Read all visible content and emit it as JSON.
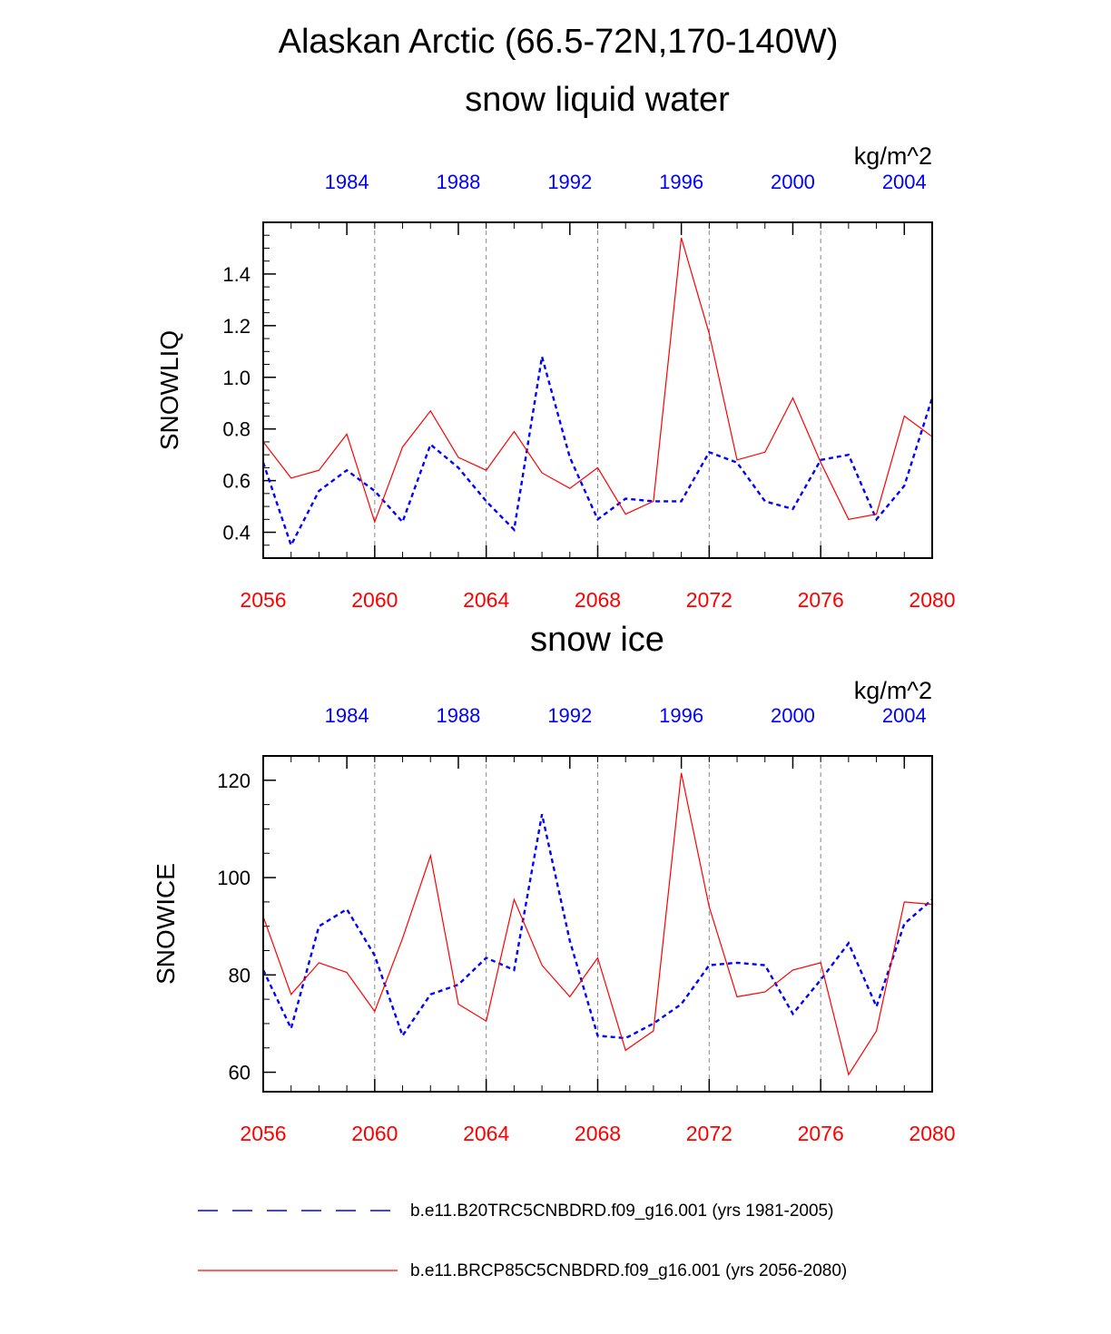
{
  "page_title": "Alaskan Arctic (66.5-72N,170-140W)",
  "colors": {
    "hist": "#0000ff",
    "future": "#ff0000",
    "axis": "#000000",
    "grid": "#888888"
  },
  "legend": {
    "hist_label": "b.e11.B20TRC5CNBDRD.f09_g16.001 (yrs 1981-2005)",
    "future_label": "b.e11.BRCP85C5CNBDRD.f09_g16.001 (yrs 2056-2080)"
  },
  "chart_data": [
    {
      "type": "line",
      "title": "snow liquid water",
      "units": "kg/m^2",
      "ylabel": "SNOWLIQ",
      "ylim": [
        0.3,
        1.6
      ],
      "yticks": [
        0.4,
        0.6,
        0.8,
        1.0,
        1.2,
        1.4
      ],
      "ytick_labels": [
        "0.4",
        "0.6",
        "0.8",
        "1.0",
        "1.2",
        "1.4"
      ],
      "bottom_xlim": [
        2056,
        2080
      ],
      "bottom_ticks": [
        2056,
        2060,
        2064,
        2068,
        2072,
        2076,
        2080
      ],
      "bottom_tick_labels": [
        "2056",
        "2060",
        "2064",
        "2068",
        "2072",
        "2076",
        "2080"
      ],
      "top_xlim": [
        1981,
        2005
      ],
      "top_ticks": [
        1984,
        1988,
        1992,
        1996,
        2000,
        2004
      ],
      "top_tick_labels": [
        "1984",
        "1988",
        "1992",
        "1996",
        "2000",
        "2004"
      ],
      "series": [
        {
          "name": "b.e11.B20TRC5CNBDRD.f09_g16.001 (yrs 1981-2005)",
          "axis": "top",
          "style": "dashed",
          "x": [
            1981,
            1982,
            1983,
            1984,
            1985,
            1986,
            1987,
            1988,
            1989,
            1990,
            1991,
            1992,
            1993,
            1994,
            1995,
            1996,
            1997,
            1998,
            1999,
            2000,
            2001,
            2002,
            2003,
            2004,
            2005
          ],
          "values": [
            0.67,
            0.35,
            0.56,
            0.64,
            0.56,
            0.44,
            0.74,
            0.65,
            0.52,
            0.41,
            1.08,
            0.69,
            0.45,
            0.53,
            0.52,
            0.52,
            0.71,
            0.67,
            0.52,
            0.49,
            0.68,
            0.7,
            0.45,
            0.58,
            0.92
          ]
        },
        {
          "name": "b.e11.BRCP85C5CNBDRD.f09_g16.001 (yrs 2056-2080)",
          "axis": "bottom",
          "style": "solid",
          "x": [
            2056,
            2057,
            2058,
            2059,
            2060,
            2061,
            2062,
            2063,
            2064,
            2065,
            2066,
            2067,
            2068,
            2069,
            2070,
            2071,
            2072,
            2073,
            2074,
            2075,
            2076,
            2077,
            2078,
            2079,
            2080
          ],
          "values": [
            0.75,
            0.61,
            0.64,
            0.78,
            0.44,
            0.73,
            0.87,
            0.69,
            0.64,
            0.79,
            0.63,
            0.57,
            0.65,
            0.47,
            0.52,
            1.54,
            1.17,
            0.68,
            0.71,
            0.92,
            0.67,
            0.45,
            0.47,
            0.85,
            0.77
          ]
        }
      ]
    },
    {
      "type": "line",
      "title": "snow ice",
      "units": "kg/m^2",
      "ylabel": "SNOWICE",
      "ylim": [
        56,
        125
      ],
      "yticks": [
        60,
        80,
        100,
        120
      ],
      "ytick_labels": [
        "60",
        "80",
        "100",
        "120"
      ],
      "bottom_xlim": [
        2056,
        2080
      ],
      "bottom_ticks": [
        2056,
        2060,
        2064,
        2068,
        2072,
        2076,
        2080
      ],
      "bottom_tick_labels": [
        "2056",
        "2060",
        "2064",
        "2068",
        "2072",
        "2076",
        "2080"
      ],
      "top_xlim": [
        1981,
        2005
      ],
      "top_ticks": [
        1984,
        1988,
        1992,
        1996,
        2000,
        2004
      ],
      "top_tick_labels": [
        "1984",
        "1988",
        "1992",
        "1996",
        "2000",
        "2004"
      ],
      "series": [
        {
          "name": "b.e11.B20TRC5CNBDRD.f09_g16.001 (yrs 1981-2005)",
          "axis": "top",
          "style": "dashed",
          "x": [
            1981,
            1982,
            1983,
            1984,
            1985,
            1986,
            1987,
            1988,
            1989,
            1990,
            1991,
            1992,
            1993,
            1994,
            1995,
            1996,
            1997,
            1998,
            1999,
            2000,
            2001,
            2002,
            2003,
            2004,
            2005
          ],
          "values": [
            81,
            69,
            90,
            93.5,
            84,
            67.5,
            76,
            78,
            83.5,
            81,
            113,
            87,
            67.5,
            67,
            70,
            74,
            82,
            82.5,
            82,
            72,
            79,
            86.5,
            73.5,
            90.5,
            95.5
          ]
        },
        {
          "name": "b.e11.BRCP85C5CNBDRD.f09_g16.001 (yrs 2056-2080)",
          "axis": "bottom",
          "style": "solid",
          "x": [
            2056,
            2057,
            2058,
            2059,
            2060,
            2061,
            2062,
            2063,
            2064,
            2065,
            2066,
            2067,
            2068,
            2069,
            2070,
            2071,
            2072,
            2073,
            2074,
            2075,
            2076,
            2077,
            2078,
            2079,
            2080
          ],
          "values": [
            92,
            76,
            82.5,
            80.5,
            72.5,
            87.5,
            104.5,
            74,
            70.5,
            95.5,
            82,
            75.5,
            83.5,
            64.5,
            68.5,
            121.5,
            94,
            75.5,
            76.5,
            81,
            82.5,
            59.5,
            68.5,
            95,
            94.5
          ]
        }
      ]
    }
  ]
}
